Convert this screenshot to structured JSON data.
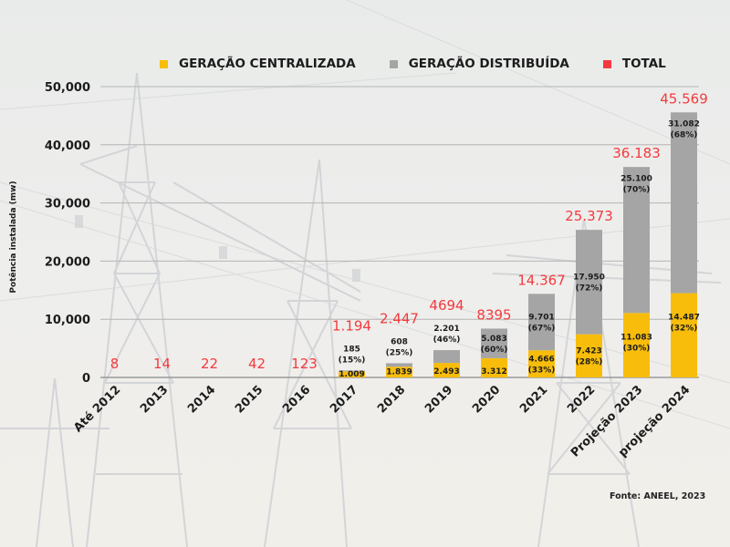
{
  "colors": {
    "centralized": "#f8bd0b",
    "distributed": "#a5a5a5",
    "total": "#f43a3f",
    "text": "#1c1c1c",
    "grid": "#b4b4b4"
  },
  "legend": [
    {
      "label": "GERAÇÃO CENTRALIZADA",
      "color": "#f8bd0b"
    },
    {
      "label": "GERAÇÃO DISTRIBUÍDA",
      "color": "#a5a5a5"
    },
    {
      "label": "TOTAL",
      "color": "#f43a3f"
    }
  ],
  "source": "Fonte: ANEEL, 2023",
  "chart_data": {
    "type": "bar",
    "stacked": true,
    "title": "",
    "xlabel": "",
    "ylabel": "Potência instalada (mw)",
    "ylim": [
      0,
      50000
    ],
    "yticks": [
      0,
      10000,
      20000,
      30000,
      40000,
      50000
    ],
    "ytick_labels": [
      "0",
      "10,000",
      "20,000",
      "30,000",
      "40,000",
      "50,000"
    ],
    "grid": true,
    "legend_position": "top",
    "categories": [
      "Até 2012",
      "2013",
      "2014",
      "2015",
      "2016",
      "2017",
      "2018",
      "2019",
      "2020",
      "2021",
      "2022",
      "Projeção 2023",
      "projeção 2024"
    ],
    "series": [
      {
        "name": "GERAÇÃO CENTRALIZADA",
        "values": [
          null,
          null,
          null,
          null,
          null,
          1009,
          1839,
          2493,
          3312,
          4666,
          7423,
          11083,
          14487
        ],
        "labels": [
          "",
          "",
          "",
          "",
          "",
          "1.009",
          "1.839",
          "2.493",
          "3.312",
          "4.666\n(33%)",
          "7.423\n(28%)",
          "11.083\n(30%)",
          "14.487\n(32%)"
        ]
      },
      {
        "name": "GERAÇÃO DISTRIBUÍDA",
        "values": [
          null,
          null,
          null,
          null,
          null,
          185,
          608,
          2201,
          5083,
          9701,
          17950,
          25100,
          31082
        ],
        "labels": [
          "",
          "",
          "",
          "",
          "",
          "185\n(15%)",
          "608\n(25%)",
          "2.201\n(46%)",
          "5.083\n(60%)",
          "9.701\n(67%)",
          "17.950\n(72%)",
          "25.100\n(70%)",
          "31.082\n(68%)"
        ]
      },
      {
        "name": "TOTAL",
        "values": [
          8,
          14,
          22,
          42,
          123,
          1194,
          2447,
          4694,
          8395,
          14367,
          25373,
          36183,
          45569
        ],
        "labels": [
          "8",
          "14",
          "22",
          "42",
          "123",
          "1.194",
          "2.447",
          "4694",
          "8395",
          "14.367",
          "25.373",
          "36.183",
          "45.569"
        ]
      }
    ]
  }
}
